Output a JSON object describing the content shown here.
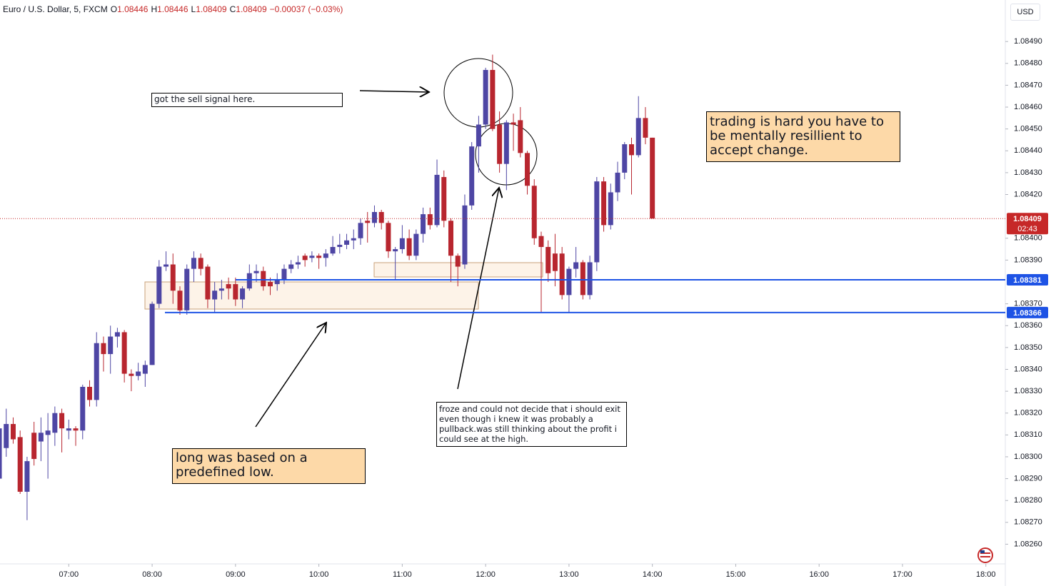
{
  "header": {
    "symbol": "Euro / U.S. Dollar, 5, FXCM",
    "ohlc": [
      {
        "label": "O",
        "value": "1.08446"
      },
      {
        "label": "H",
        "value": "1.08446"
      },
      {
        "label": "L",
        "value": "1.08409"
      },
      {
        "label": "C",
        "value": "1.08409"
      }
    ],
    "change": "−0.00037 (−0.03%)",
    "currency": "USD"
  },
  "annotations": [
    "got the sell signal here.",
    "trading is hard you have to be mentally resillient to accept change.",
    "long was based on a predefined low.",
    "froze and could not decide that i should exit even though i knew it was probably a pullback.was still thinking about the profit i could see at the high."
  ],
  "chart_data": {
    "type": "candlestick",
    "up_color": "#4e46a4",
    "down_color": "#b8262f",
    "x": [
      "06:10",
      "06:15",
      "06:20",
      "06:25",
      "06:30",
      "06:35",
      "06:40",
      "06:45",
      "06:50",
      "06:55",
      "07:00",
      "07:05",
      "07:10",
      "07:15",
      "07:20",
      "07:25",
      "07:30",
      "07:35",
      "07:40",
      "07:45",
      "07:50",
      "07:55",
      "08:00",
      "08:05",
      "08:10",
      "08:15",
      "08:20",
      "08:25",
      "08:30",
      "08:35",
      "08:40",
      "08:45",
      "08:50",
      "08:55",
      "09:00",
      "09:05",
      "09:10",
      "09:15",
      "09:20",
      "09:25",
      "09:30",
      "09:35",
      "09:40",
      "09:45",
      "09:50",
      "09:55",
      "10:00",
      "10:05",
      "10:10",
      "10:15",
      "10:20",
      "10:25",
      "10:30",
      "10:35",
      "10:40",
      "10:45",
      "10:50",
      "10:55",
      "11:00",
      "11:05",
      "11:10",
      "11:15",
      "11:20",
      "11:25",
      "11:30",
      "11:35",
      "11:40",
      "11:45",
      "11:50",
      "11:55",
      "12:00",
      "12:05",
      "12:10",
      "12:15",
      "12:20",
      "12:25",
      "12:30",
      "12:35",
      "12:40",
      "12:45",
      "12:50",
      "12:55",
      "13:00",
      "13:05",
      "13:10",
      "13:15",
      "13:20",
      "13:25",
      "13:30",
      "13:35",
      "13:40",
      "13:45",
      "13:50",
      "13:55",
      "14:00"
    ],
    "open": [
      1.0829,
      1.08304,
      1.08315,
      1.08309,
      1.08284,
      1.08311,
      1.08307,
      1.0831,
      1.08311,
      1.0832,
      1.08312,
      1.08313,
      1.08312,
      1.08332,
      1.08326,
      1.08352,
      1.08347,
      1.08355,
      1.08357,
      1.08338,
      1.08337,
      1.08338,
      1.08342,
      1.0837,
      1.08387,
      1.08388,
      1.08376,
      1.08367,
      1.08386,
      1.08391,
      1.08387,
      1.08372,
      1.08376,
      1.08379,
      1.08379,
      1.08372,
      1.08377,
      1.08384,
      1.08385,
      1.0838,
      1.08379,
      1.08381,
      1.08386,
      1.08388,
      1.08392,
      1.08391,
      1.08392,
      1.08391,
      1.08393,
      1.08396,
      1.08397,
      1.08399,
      1.084,
      1.08408,
      1.08407,
      1.08412,
      1.08407,
      1.08394,
      1.08395,
      1.084,
      1.08392,
      1.08402,
      1.08411,
      1.08406,
      1.08428,
      1.08408,
      1.08392,
      1.08388,
      1.08415,
      1.08442,
      1.08452,
      1.08477,
      1.08452,
      1.08434,
      1.08453,
      1.08454,
      1.08439,
      1.08424,
      1.08401,
      1.08396,
      1.08393,
      1.08393,
      1.08374,
      1.08386,
      1.08389,
      1.08374,
      1.08389,
      1.08426,
      1.08406,
      1.08421,
      1.0843,
      1.08443,
      1.08438,
      1.08455,
      1.08446
    ],
    "high": [
      1.08315,
      1.08322,
      1.08318,
      1.08312,
      1.083,
      1.08316,
      1.08318,
      1.0832,
      1.08323,
      1.08322,
      1.08317,
      1.08314,
      1.08333,
      1.08335,
      1.08357,
      1.08355,
      1.0836,
      1.08359,
      1.08358,
      1.0834,
      1.08343,
      1.08344,
      1.08371,
      1.0839,
      1.08394,
      1.08393,
      1.08378,
      1.08388,
      1.08394,
      1.08393,
      1.08388,
      1.0838,
      1.08381,
      1.08382,
      1.08382,
      1.08378,
      1.08388,
      1.08388,
      1.08387,
      1.08382,
      1.08384,
      1.08388,
      1.0839,
      1.08392,
      1.08393,
      1.08394,
      1.08393,
      1.08395,
      1.08401,
      1.08402,
      1.08402,
      1.08404,
      1.08409,
      1.08412,
      1.08415,
      1.08413,
      1.08408,
      1.08396,
      1.08406,
      1.08404,
      1.08404,
      1.08414,
      1.08414,
      1.08436,
      1.08431,
      1.08409,
      1.08393,
      1.0842,
      1.08444,
      1.08456,
      1.08478,
      1.08484,
      1.08458,
      1.08454,
      1.08457,
      1.0846,
      1.0844,
      1.08427,
      1.08403,
      1.08399,
      1.08402,
      1.08396,
      1.08387,
      1.08396,
      1.0839,
      1.08392,
      1.08428,
      1.08428,
      1.08425,
      1.08435,
      1.08444,
      1.08446,
      1.08465,
      1.0846,
      1.08446
    ],
    "low": [
      1.08288,
      1.083,
      1.08306,
      1.08283,
      1.08271,
      1.08296,
      1.08298,
      1.0829,
      1.08305,
      1.08302,
      1.08308,
      1.08305,
      1.08308,
      1.08323,
      1.08323,
      1.08339,
      1.08338,
      1.0835,
      1.08334,
      1.0833,
      1.08335,
      1.08332,
      1.08342,
      1.08368,
      1.08385,
      1.0837,
      1.08365,
      1.08365,
      1.0838,
      1.08383,
      1.08368,
      1.08366,
      1.08372,
      1.08372,
      1.08369,
      1.08368,
      1.08376,
      1.0838,
      1.08376,
      1.08374,
      1.08376,
      1.08379,
      1.08384,
      1.08386,
      1.08387,
      1.08389,
      1.08386,
      1.08387,
      1.08392,
      1.08393,
      1.08395,
      1.08395,
      1.08397,
      1.08398,
      1.08405,
      1.08404,
      1.08391,
      1.08381,
      1.08393,
      1.0839,
      1.0839,
      1.08398,
      1.08404,
      1.08405,
      1.08405,
      1.0838,
      1.08378,
      1.08386,
      1.08413,
      1.0843,
      1.0845,
      1.08449,
      1.0843,
      1.08422,
      1.0844,
      1.08437,
      1.0842,
      1.08397,
      1.08366,
      1.0838,
      1.08378,
      1.08372,
      1.08366,
      1.08382,
      1.08372,
      1.08372,
      1.08385,
      1.08403,
      1.08404,
      1.08417,
      1.08427,
      1.0842,
      1.08437,
      1.08443,
      1.08409
    ],
    "close": [
      1.08313,
      1.08315,
      1.08308,
      1.08284,
      1.08298,
      1.08299,
      1.08311,
      1.08312,
      1.0832,
      1.08313,
      1.08313,
      1.08312,
      1.08332,
      1.08326,
      1.08352,
      1.08347,
      1.08355,
      1.08357,
      1.08338,
      1.08337,
      1.08339,
      1.08342,
      1.0837,
      1.08387,
      1.08388,
      1.08376,
      1.08367,
      1.08386,
      1.08391,
      1.08386,
      1.08372,
      1.08376,
      1.08377,
      1.08377,
      1.08372,
      1.08377,
      1.08384,
      1.08385,
      1.08378,
      1.08378,
      1.08381,
      1.08386,
      1.08388,
      1.08389,
      1.0839,
      1.08392,
      1.08391,
      1.08393,
      1.08396,
      1.08397,
      1.08399,
      1.084,
      1.08407,
      1.08407,
      1.08412,
      1.08407,
      1.08394,
      1.08395,
      1.084,
      1.08392,
      1.08402,
      1.08411,
      1.08406,
      1.08429,
      1.08408,
      1.08392,
      1.08387,
      1.08415,
      1.08442,
      1.08452,
      1.08477,
      1.0845,
      1.08434,
      1.08453,
      1.08452,
      1.08439,
      1.08424,
      1.084,
      1.08396,
      1.08384,
      1.08385,
      1.08374,
      1.08386,
      1.08389,
      1.08374,
      1.08389,
      1.08426,
      1.08406,
      1.08421,
      1.0843,
      1.08443,
      1.08438,
      1.08455,
      1.08446,
      1.08409
    ],
    "xlim": [
      "06:10",
      "18:14"
    ],
    "xticks": [
      "07:00",
      "08:00",
      "09:00",
      "10:00",
      "11:00",
      "12:00",
      "13:00",
      "14:00",
      "15:00",
      "16:00",
      "17:00",
      "18:00"
    ],
    "ylim": [
      1.08251,
      1.08509
    ],
    "yticks": [
      {
        "value": 1.0849,
        "label": "1.08490"
      },
      {
        "value": 1.0848,
        "label": "1.08480"
      },
      {
        "value": 1.0847,
        "label": "1.08470"
      },
      {
        "value": 1.0846,
        "label": "1.08460"
      },
      {
        "value": 1.0845,
        "label": "1.08450"
      },
      {
        "value": 1.0844,
        "label": "1.08440"
      },
      {
        "value": 1.0843,
        "label": "1.08430"
      },
      {
        "value": 1.0842,
        "label": "1.08420"
      },
      {
        "value": 1.084,
        "label": "1.08400"
      },
      {
        "value": 1.0839,
        "label": "1.08390"
      },
      {
        "value": 1.0837,
        "label": "1.08370"
      },
      {
        "value": 1.0836,
        "label": "1.08360"
      },
      {
        "value": 1.0835,
        "label": "1.08350"
      },
      {
        "value": 1.0834,
        "label": "1.08340"
      },
      {
        "value": 1.0833,
        "label": "1.08330"
      },
      {
        "value": 1.0832,
        "label": "1.08320"
      },
      {
        "value": 1.0831,
        "label": "1.08310"
      },
      {
        "value": 1.083,
        "label": "1.08300"
      },
      {
        "value": 1.0829,
        "label": "1.08290"
      },
      {
        "value": 1.0828,
        "label": "1.08280"
      },
      {
        "value": 1.0827,
        "label": "1.08270"
      },
      {
        "value": 1.0826,
        "label": "1.08260"
      }
    ],
    "grid": false,
    "hlines": [
      {
        "value": 1.08381,
        "color": "#1e53e5"
      },
      {
        "value": 1.08366,
        "color": "#1e53e5"
      }
    ],
    "price_line": {
      "value": 1.08409,
      "countdown": "02:43",
      "color": "#c62828"
    }
  }
}
